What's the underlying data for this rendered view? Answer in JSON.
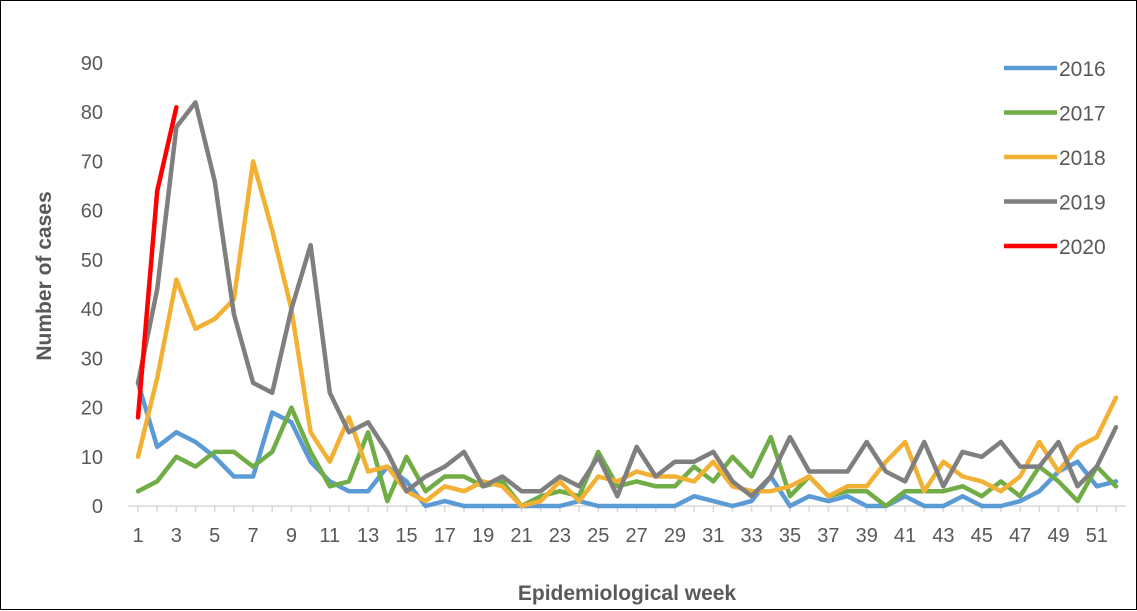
{
  "chart_data": {
    "type": "line",
    "xlabel": "Epidemiological  week",
    "ylabel": "Number of cases",
    "ylim": [
      0,
      90
    ],
    "y_ticks": [
      0,
      10,
      20,
      30,
      40,
      50,
      60,
      70,
      80,
      90
    ],
    "x_ticks": [
      1,
      3,
      5,
      7,
      9,
      11,
      13,
      15,
      17,
      19,
      21,
      23,
      25,
      27,
      29,
      31,
      33,
      35,
      37,
      39,
      41,
      43,
      45,
      47,
      49,
      51
    ],
    "x_range": [
      1,
      52
    ],
    "grid": false,
    "legend_position": "right",
    "series": [
      {
        "name": "2016",
        "color": "#5B9BD5",
        "values": [
          25,
          12,
          15,
          13,
          10,
          6,
          6,
          19,
          17,
          9,
          5,
          3,
          3,
          8,
          5,
          0,
          1,
          0,
          0,
          0,
          0,
          0,
          0,
          1,
          0,
          0,
          0,
          0,
          0,
          2,
          1,
          0,
          1,
          6,
          0,
          2,
          1,
          2,
          0,
          0,
          2,
          0,
          0,
          2,
          0,
          0,
          1,
          3,
          7,
          9,
          4,
          5
        ]
      },
      {
        "name": "2017",
        "color": "#70AD47",
        "values": [
          3,
          5,
          10,
          8,
          11,
          11,
          8,
          11,
          20,
          11,
          4,
          5,
          15,
          1,
          10,
          3,
          6,
          6,
          4,
          5,
          0,
          2,
          3,
          2,
          11,
          4,
          5,
          4,
          4,
          8,
          5,
          10,
          6,
          14,
          2,
          6,
          2,
          3,
          3,
          0,
          3,
          3,
          3,
          4,
          2,
          5,
          2,
          8,
          5,
          1,
          8,
          4
        ]
      },
      {
        "name": "2018",
        "color": "#F2B134",
        "values": [
          10,
          26,
          46,
          36,
          38,
          42,
          70,
          56,
          40,
          15,
          9,
          18,
          7,
          8,
          3,
          1,
          4,
          3,
          5,
          4,
          0,
          1,
          5,
          1,
          6,
          5,
          7,
          6,
          6,
          5,
          9,
          4,
          3,
          3,
          4,
          6,
          2,
          4,
          4,
          9,
          13,
          3,
          9,
          6,
          5,
          3,
          6,
          13,
          7,
          12,
          14,
          22
        ]
      },
      {
        "name": "2019",
        "color": "#7F7F7F",
        "values": [
          25,
          44,
          77,
          82,
          66,
          39,
          25,
          23,
          40,
          53,
          23,
          15,
          17,
          11,
          3,
          6,
          8,
          11,
          4,
          6,
          3,
          3,
          6,
          4,
          10,
          2,
          12,
          6,
          9,
          9,
          11,
          5,
          2,
          6,
          14,
          7,
          7,
          7,
          13,
          7,
          5,
          13,
          4,
          11,
          10,
          13,
          8,
          8,
          13,
          4,
          8,
          16
        ]
      },
      {
        "name": "2020",
        "color": "#FF0000",
        "values": [
          18,
          64,
          81
        ]
      }
    ]
  }
}
